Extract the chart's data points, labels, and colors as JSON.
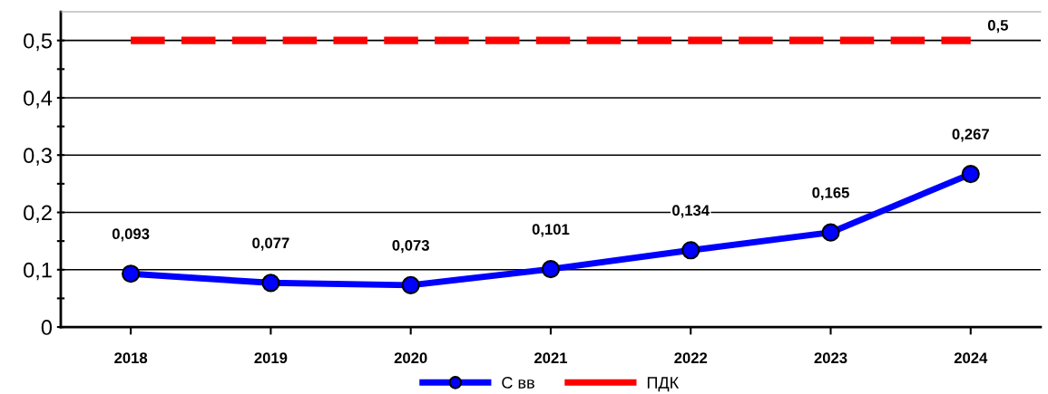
{
  "chart_data": {
    "type": "line",
    "categories": [
      "2018",
      "2019",
      "2020",
      "2021",
      "2022",
      "2023",
      "2024"
    ],
    "series": [
      {
        "name": "С вв",
        "color": "#0000ff",
        "marker": "circle",
        "line_style": "solid",
        "values": [
          0.093,
          0.077,
          0.073,
          0.101,
          0.134,
          0.165,
          0.267
        ],
        "value_labels": [
          "0,093",
          "0,077",
          "0,073",
          "0,101",
          "0,134",
          "0,165",
          "0,267"
        ]
      },
      {
        "name": "ПДК",
        "color": "#ff0000",
        "marker": "none",
        "line_style": "dashed",
        "values": [
          0.5,
          0.5,
          0.5,
          0.5,
          0.5,
          0.5,
          0.5
        ],
        "value_labels": [
          null,
          null,
          null,
          null,
          null,
          null,
          "0,5"
        ]
      }
    ],
    "ylim": [
      0,
      0.55
    ],
    "yticks": [
      {
        "value": 0,
        "label": "0"
      },
      {
        "value": 0.05,
        "label": null
      },
      {
        "value": 0.1,
        "label": "0,1"
      },
      {
        "value": 0.15,
        "label": null
      },
      {
        "value": 0.2,
        "label": "0,2"
      },
      {
        "value": 0.25,
        "label": null
      },
      {
        "value": 0.3,
        "label": "0,3"
      },
      {
        "value": 0.35,
        "label": null
      },
      {
        "value": 0.4,
        "label": "0,4"
      },
      {
        "value": 0.45,
        "label": null
      },
      {
        "value": 0.5,
        "label": "0,5"
      }
    ],
    "grid": "y",
    "legend": "bottom"
  }
}
